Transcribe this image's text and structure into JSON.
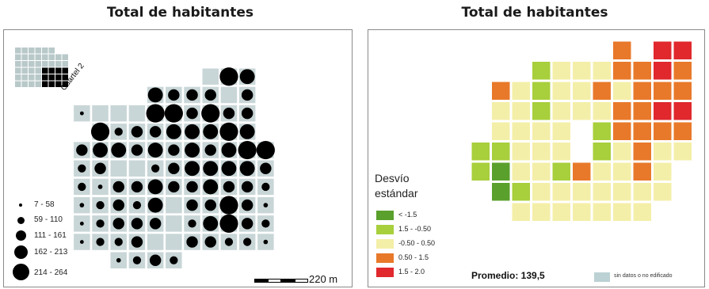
{
  "left_map": {
    "title": "Total de habitantes",
    "inset_label": "Cuartel 2",
    "scale_label": "220 m",
    "legend": [
      {
        "label": "7 - 58",
        "value": 30
      },
      {
        "label": "59 - 110",
        "value": 85
      },
      {
        "label": "111 - 161",
        "value": 135
      },
      {
        "label": "162 - 213",
        "value": 188
      },
      {
        "label": "214 - 264",
        "value": 240
      }
    ],
    "colors": {
      "block": "#c9d6d7",
      "dot": "#000000"
    },
    "cells": [
      {
        "col": 10,
        "row": 0,
        "v": 0
      },
      {
        "col": 11,
        "row": 0,
        "v": 240
      },
      {
        "col": 12,
        "row": 0,
        "v": 188
      },
      {
        "col": 7,
        "row": 1,
        "v": 188
      },
      {
        "col": 8,
        "row": 1,
        "v": 135
      },
      {
        "col": 9,
        "row": 1,
        "v": 135
      },
      {
        "col": 10,
        "row": 1,
        "v": 135
      },
      {
        "col": 11,
        "row": 1,
        "v": 0
      },
      {
        "col": 12,
        "row": 1,
        "v": 135
      },
      {
        "col": 3,
        "row": 2,
        "v": 20
      },
      {
        "col": 4,
        "row": 2,
        "v": 0
      },
      {
        "col": 5,
        "row": 2,
        "v": 0
      },
      {
        "col": 6,
        "row": 2,
        "v": 0
      },
      {
        "col": 7,
        "row": 2,
        "v": 240
      },
      {
        "col": 8,
        "row": 2,
        "v": 240
      },
      {
        "col": 9,
        "row": 2,
        "v": 135
      },
      {
        "col": 10,
        "row": 2,
        "v": 240
      },
      {
        "col": 11,
        "row": 2,
        "v": 135
      },
      {
        "col": 12,
        "row": 2,
        "v": 135
      },
      {
        "col": 4,
        "row": 3,
        "v": 240
      },
      {
        "col": 5,
        "row": 3,
        "v": 85
      },
      {
        "col": 6,
        "row": 3,
        "v": 135
      },
      {
        "col": 7,
        "row": 3,
        "v": 135
      },
      {
        "col": 8,
        "row": 3,
        "v": 188
      },
      {
        "col": 9,
        "row": 3,
        "v": 188
      },
      {
        "col": 10,
        "row": 3,
        "v": 188
      },
      {
        "col": 11,
        "row": 3,
        "v": 240
      },
      {
        "col": 12,
        "row": 3,
        "v": 188
      },
      {
        "col": 3,
        "row": 4,
        "v": 135
      },
      {
        "col": 4,
        "row": 4,
        "v": 188
      },
      {
        "col": 5,
        "row": 4,
        "v": 188
      },
      {
        "col": 6,
        "row": 4,
        "v": 135
      },
      {
        "col": 7,
        "row": 4,
        "v": 188
      },
      {
        "col": 8,
        "row": 4,
        "v": 135
      },
      {
        "col": 9,
        "row": 4,
        "v": 188
      },
      {
        "col": 10,
        "row": 4,
        "v": 135
      },
      {
        "col": 11,
        "row": 4,
        "v": 188
      },
      {
        "col": 12,
        "row": 4,
        "v": 240
      },
      {
        "col": 13,
        "row": 4,
        "v": 240
      },
      {
        "col": 3,
        "row": 5,
        "v": 85
      },
      {
        "col": 4,
        "row": 5,
        "v": 135
      },
      {
        "col": 5,
        "row": 5,
        "v": 0
      },
      {
        "col": 6,
        "row": 5,
        "v": 0
      },
      {
        "col": 7,
        "row": 5,
        "v": 85
      },
      {
        "col": 8,
        "row": 5,
        "v": 135
      },
      {
        "col": 9,
        "row": 5,
        "v": 188
      },
      {
        "col": 10,
        "row": 5,
        "v": 188
      },
      {
        "col": 11,
        "row": 5,
        "v": 188
      },
      {
        "col": 12,
        "row": 5,
        "v": 188
      },
      {
        "col": 13,
        "row": 5,
        "v": 135
      },
      {
        "col": 3,
        "row": 6,
        "v": 85
      },
      {
        "col": 4,
        "row": 6,
        "v": 30
      },
      {
        "col": 5,
        "row": 6,
        "v": 135
      },
      {
        "col": 6,
        "row": 6,
        "v": 135
      },
      {
        "col": 7,
        "row": 6,
        "v": 188
      },
      {
        "col": 8,
        "row": 6,
        "v": 135
      },
      {
        "col": 9,
        "row": 6,
        "v": 135
      },
      {
        "col": 10,
        "row": 6,
        "v": 188
      },
      {
        "col": 11,
        "row": 6,
        "v": 135
      },
      {
        "col": 12,
        "row": 6,
        "v": 135
      },
      {
        "col": 13,
        "row": 6,
        "v": 85
      },
      {
        "col": 3,
        "row": 7,
        "v": 30
      },
      {
        "col": 4,
        "row": 7,
        "v": 85
      },
      {
        "col": 5,
        "row": 7,
        "v": 135
      },
      {
        "col": 6,
        "row": 7,
        "v": 85
      },
      {
        "col": 7,
        "row": 7,
        "v": 188
      },
      {
        "col": 8,
        "row": 7,
        "v": 0
      },
      {
        "col": 9,
        "row": 7,
        "v": 135
      },
      {
        "col": 10,
        "row": 7,
        "v": 135
      },
      {
        "col": 11,
        "row": 7,
        "v": 240
      },
      {
        "col": 12,
        "row": 7,
        "v": 135
      },
      {
        "col": 13,
        "row": 7,
        "v": 30
      },
      {
        "col": 3,
        "row": 8,
        "v": 20
      },
      {
        "col": 4,
        "row": 8,
        "v": 85
      },
      {
        "col": 5,
        "row": 8,
        "v": 135
      },
      {
        "col": 6,
        "row": 8,
        "v": 135
      },
      {
        "col": 7,
        "row": 8,
        "v": 135
      },
      {
        "col": 8,
        "row": 8,
        "v": 0
      },
      {
        "col": 9,
        "row": 8,
        "v": 85
      },
      {
        "col": 10,
        "row": 8,
        "v": 188
      },
      {
        "col": 11,
        "row": 8,
        "v": 240
      },
      {
        "col": 12,
        "row": 8,
        "v": 135
      },
      {
        "col": 13,
        "row": 8,
        "v": 85
      },
      {
        "col": 3,
        "row": 9,
        "v": 20
      },
      {
        "col": 4,
        "row": 9,
        "v": 85
      },
      {
        "col": 5,
        "row": 9,
        "v": 85
      },
      {
        "col": 6,
        "row": 9,
        "v": 135
      },
      {
        "col": 7,
        "row": 9,
        "v": 0
      },
      {
        "col": 8,
        "row": 9,
        "v": 0
      },
      {
        "col": 9,
        "row": 9,
        "v": 135
      },
      {
        "col": 10,
        "row": 9,
        "v": 135
      },
      {
        "col": 11,
        "row": 9,
        "v": 85
      },
      {
        "col": 12,
        "row": 9,
        "v": 85
      },
      {
        "col": 13,
        "row": 9,
        "v": 30
      },
      {
        "col": 5,
        "row": 10,
        "v": 30
      },
      {
        "col": 6,
        "row": 10,
        "v": 85
      },
      {
        "col": 7,
        "row": 10,
        "v": 135
      },
      {
        "col": 8,
        "row": 10,
        "v": 85
      }
    ]
  },
  "right_map": {
    "title": "Total de habitantes",
    "legend_title_line1": "Desvío",
    "legend_title_line2": "estándar",
    "classes": [
      {
        "label": "< -1.5",
        "color": "#5aa02c"
      },
      {
        "label": "1.5 - -0.50",
        "color": "#a8cf3c"
      },
      {
        "label": "-0.50 - 0.50",
        "color": "#f4efa8"
      },
      {
        "label": "0.50 - 1.5",
        "color": "#e8792a"
      },
      {
        "label": "1.5 - 2.0",
        "color": "#e0282d"
      }
    ],
    "mean_label": "Promedio: 139,5",
    "nodata_label": "sin datos o no edificado",
    "nodata_color": "#bcd1d3",
    "cells": [
      {
        "col": 11,
        "row": 0,
        "c": 3
      },
      {
        "col": 13,
        "row": 0,
        "c": 4
      },
      {
        "col": 14,
        "row": 0,
        "c": 4
      },
      {
        "col": 7,
        "row": 1,
        "c": 1
      },
      {
        "col": 8,
        "row": 1,
        "c": 2
      },
      {
        "col": 9,
        "row": 1,
        "c": 2
      },
      {
        "col": 10,
        "row": 1,
        "c": 2
      },
      {
        "col": 11,
        "row": 1,
        "c": 3
      },
      {
        "col": 12,
        "row": 1,
        "c": 3
      },
      {
        "col": 13,
        "row": 1,
        "c": 4
      },
      {
        "col": 14,
        "row": 1,
        "c": 3
      },
      {
        "col": 5,
        "row": 2,
        "c": 3
      },
      {
        "col": 6,
        "row": 2,
        "c": 2
      },
      {
        "col": 7,
        "row": 2,
        "c": 1
      },
      {
        "col": 8,
        "row": 2,
        "c": 2
      },
      {
        "col": 9,
        "row": 2,
        "c": 2
      },
      {
        "col": 10,
        "row": 2,
        "c": 3
      },
      {
        "col": 11,
        "row": 2,
        "c": 2
      },
      {
        "col": 12,
        "row": 2,
        "c": 3
      },
      {
        "col": 13,
        "row": 2,
        "c": 3
      },
      {
        "col": 14,
        "row": 2,
        "c": 3
      },
      {
        "col": 5,
        "row": 3,
        "c": 2
      },
      {
        "col": 6,
        "row": 3,
        "c": 2
      },
      {
        "col": 7,
        "row": 3,
        "c": 1
      },
      {
        "col": 8,
        "row": 3,
        "c": 2
      },
      {
        "col": 9,
        "row": 3,
        "c": 2
      },
      {
        "col": 10,
        "row": 3,
        "c": 2
      },
      {
        "col": 11,
        "row": 3,
        "c": 3
      },
      {
        "col": 12,
        "row": 3,
        "c": 3
      },
      {
        "col": 13,
        "row": 3,
        "c": 4
      },
      {
        "col": 14,
        "row": 3,
        "c": 4
      },
      {
        "col": 5,
        "row": 4,
        "c": 2
      },
      {
        "col": 6,
        "row": 4,
        "c": 2
      },
      {
        "col": 7,
        "row": 4,
        "c": 2
      },
      {
        "col": 8,
        "row": 4,
        "c": 2
      },
      {
        "col": 10,
        "row": 4,
        "c": 1
      },
      {
        "col": 11,
        "row": 4,
        "c": 3
      },
      {
        "col": 12,
        "row": 4,
        "c": 3
      },
      {
        "col": 13,
        "row": 4,
        "c": 3
      },
      {
        "col": 14,
        "row": 4,
        "c": 3
      },
      {
        "col": 4,
        "row": 5,
        "c": 1
      },
      {
        "col": 5,
        "row": 5,
        "c": 1
      },
      {
        "col": 6,
        "row": 5,
        "c": 2
      },
      {
        "col": 7,
        "row": 5,
        "c": 2
      },
      {
        "col": 8,
        "row": 5,
        "c": 2
      },
      {
        "col": 10,
        "row": 5,
        "c": 1
      },
      {
        "col": 11,
        "row": 5,
        "c": 2
      },
      {
        "col": 12,
        "row": 5,
        "c": 3
      },
      {
        "col": 13,
        "row": 5,
        "c": 2
      },
      {
        "col": 14,
        "row": 5,
        "c": 2
      },
      {
        "col": 4,
        "row": 6,
        "c": 1
      },
      {
        "col": 5,
        "row": 6,
        "c": 0
      },
      {
        "col": 6,
        "row": 6,
        "c": 2
      },
      {
        "col": 7,
        "row": 6,
        "c": 2
      },
      {
        "col": 8,
        "row": 6,
        "c": 1
      },
      {
        "col": 9,
        "row": 6,
        "c": 3
      },
      {
        "col": 10,
        "row": 6,
        "c": 2
      },
      {
        "col": 11,
        "row": 6,
        "c": 2
      },
      {
        "col": 12,
        "row": 6,
        "c": 3
      },
      {
        "col": 13,
        "row": 6,
        "c": 2
      },
      {
        "col": 5,
        "row": 7,
        "c": 0
      },
      {
        "col": 6,
        "row": 7,
        "c": 1
      },
      {
        "col": 7,
        "row": 7,
        "c": 2
      },
      {
        "col": 8,
        "row": 7,
        "c": 2
      },
      {
        "col": 9,
        "row": 7,
        "c": 2
      },
      {
        "col": 10,
        "row": 7,
        "c": 2
      },
      {
        "col": 11,
        "row": 7,
        "c": 2
      },
      {
        "col": 12,
        "row": 7,
        "c": 2
      },
      {
        "col": 13,
        "row": 7,
        "c": 2
      },
      {
        "col": 6,
        "row": 8,
        "c": 2
      },
      {
        "col": 7,
        "row": 8,
        "c": 2
      },
      {
        "col": 8,
        "row": 8,
        "c": 2
      },
      {
        "col": 9,
        "row": 8,
        "c": 2
      },
      {
        "col": 10,
        "row": 8,
        "c": 2
      },
      {
        "col": 11,
        "row": 8,
        "c": 2
      },
      {
        "col": 12,
        "row": 8,
        "c": 2
      }
    ]
  }
}
